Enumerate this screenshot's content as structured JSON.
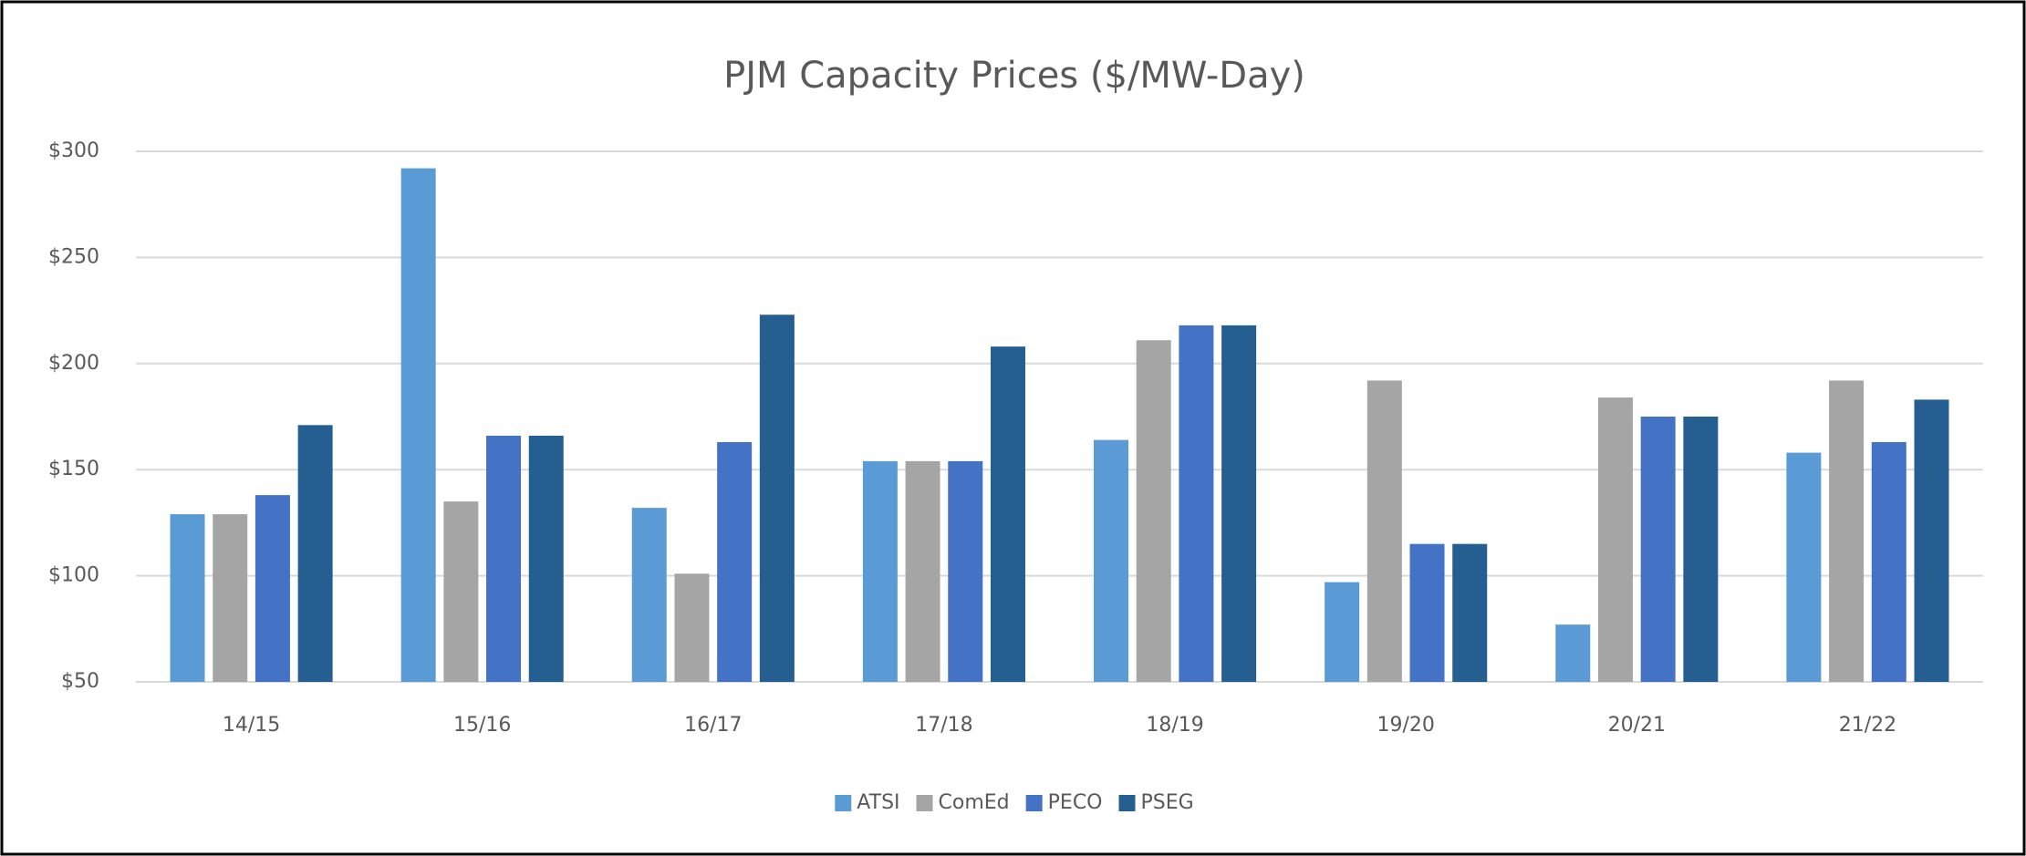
{
  "chart_data": {
    "type": "bar",
    "title": "PJM Capacity Prices ($/MW-Day)",
    "categories": [
      "14/15",
      "15/16",
      "16/17",
      "17/18",
      "18/19",
      "19/20",
      "20/21",
      "21/22"
    ],
    "series": [
      {
        "name": "ATSI",
        "color": "#5b9bd5",
        "values": [
          129,
          292,
          132,
          154,
          164,
          97,
          77,
          158
        ]
      },
      {
        "name": "ComEd",
        "color": "#a5a5a5",
        "values": [
          129,
          135,
          101,
          154,
          211,
          192,
          184,
          192
        ]
      },
      {
        "name": "PECO",
        "color": "#4472c4",
        "values": [
          138,
          166,
          163,
          154,
          218,
          115,
          175,
          163
        ]
      },
      {
        "name": "PSEG",
        "color": "#255e91",
        "values": [
          171,
          166,
          223,
          208,
          218,
          115,
          175,
          183
        ]
      }
    ],
    "ylim": [
      50,
      300
    ],
    "yticks": [
      {
        "value": 50,
        "label": "$50"
      },
      {
        "value": 100,
        "label": "$100"
      },
      {
        "value": 150,
        "label": "$150"
      },
      {
        "value": 200,
        "label": "$200"
      },
      {
        "value": 250,
        "label": "$250"
      },
      {
        "value": 300,
        "label": "$300"
      }
    ],
    "grid": true,
    "legend": "bottom"
  }
}
